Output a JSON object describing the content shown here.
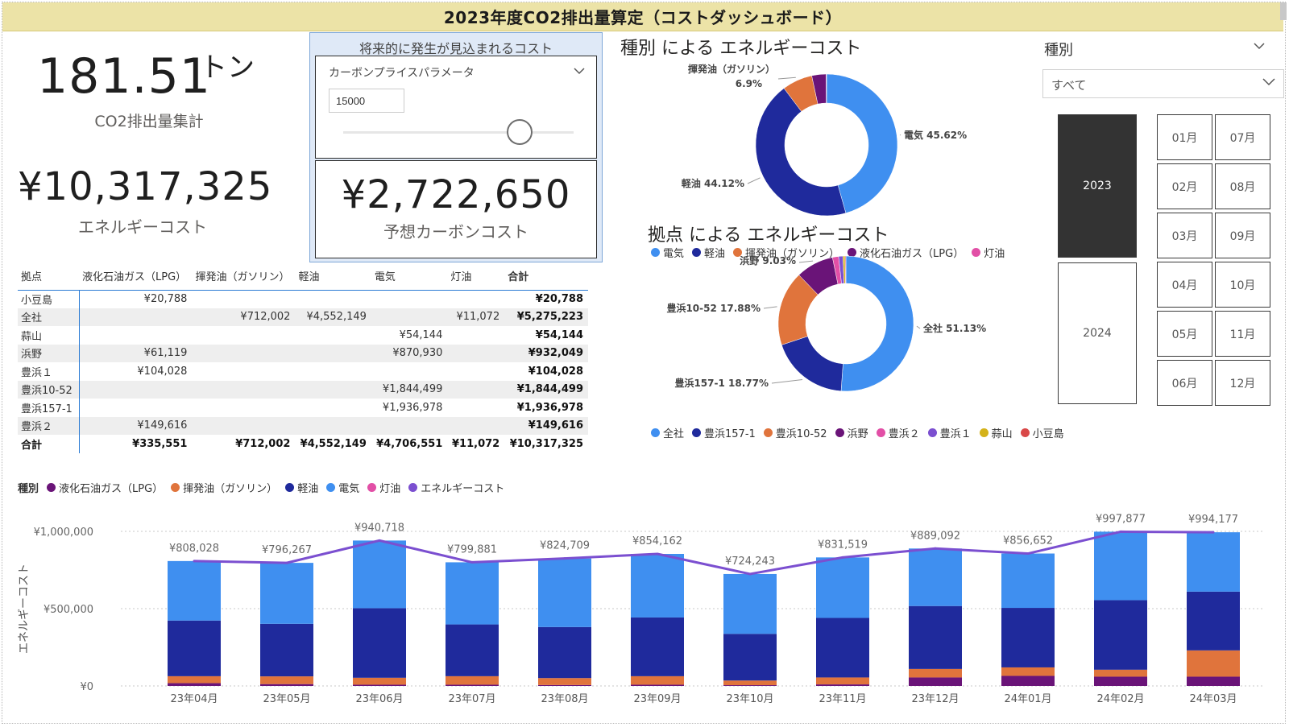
{
  "header": {
    "title": "2023年度CO2排出量算定（コストダッシュボード）"
  },
  "kpi": {
    "co2_value": "181.51",
    "co2_unit": "トン",
    "co2_label": "CO2排出量集計",
    "energy_value": "¥10,317,325",
    "energy_label": "エネルギーコスト",
    "carbon_value": "¥2,722,650",
    "carbon_label": "予想カーボンコスト"
  },
  "carbon_box": {
    "heading": "将来的に発生が見込まれるコスト",
    "param_title": "カーボンプライスパラメータ",
    "param_value": "15000",
    "slider_fraction": 0.75
  },
  "matrix": {
    "headers": [
      "拠点",
      "液化石油ガス（LPG）",
      "揮発油（ガソリン）",
      "軽油",
      "電気",
      "灯油",
      "合計"
    ],
    "rows": [
      [
        "小豆島",
        "¥20,788",
        "",
        "",
        "",
        "",
        "¥20,788"
      ],
      [
        "全社",
        "",
        "¥712,002",
        "¥4,552,149",
        "",
        "¥11,072",
        "¥5,275,223"
      ],
      [
        "蒜山",
        "",
        "",
        "",
        "¥54,144",
        "",
        "¥54,144"
      ],
      [
        "浜野",
        "¥61,119",
        "",
        "",
        "¥870,930",
        "",
        "¥932,049"
      ],
      [
        "豊浜１",
        "¥104,028",
        "",
        "",
        "",
        "",
        "¥104,028"
      ],
      [
        "豊浜10-52",
        "",
        "",
        "",
        "¥1,844,499",
        "",
        "¥1,844,499"
      ],
      [
        "豊浜157-1",
        "",
        "",
        "",
        "¥1,936,978",
        "",
        "¥1,936,978"
      ],
      [
        "豊浜２",
        "¥149,616",
        "",
        "",
        "",
        "",
        "¥149,616"
      ]
    ],
    "total": [
      "合計",
      "¥335,551",
      "¥712,002",
      "¥4,552,149",
      "¥4,706,551",
      "¥11,072",
      "¥10,317,325"
    ]
  },
  "donut_type": {
    "title": "種別 による エネルギーコスト",
    "slices": [
      {
        "label": "電気 45.62%",
        "value": 45.62,
        "color": "#3f8ff0"
      },
      {
        "label": "軽油 44.12%",
        "value": 44.12,
        "color": "#1f2a9c"
      },
      {
        "label": "揮発油（ガソリン）",
        "label2": "6.9%",
        "value": 6.9,
        "color": "#e0743c"
      },
      {
        "label": "",
        "value": 3.25,
        "color": "#6a1478"
      },
      {
        "label": "",
        "value": 0.11,
        "color": "#e24fa6"
      }
    ]
  },
  "donut_site": {
    "title": "拠点 による エネルギーコスト",
    "slices": [
      {
        "label": "全社 51.13%",
        "value": 51.13,
        "color": "#3f8ff0"
      },
      {
        "label": "豊浜157-1 18.77%",
        "value": 18.77,
        "color": "#1f2a9c"
      },
      {
        "label": "豊浜10-52 17.88%",
        "value": 17.88,
        "color": "#e0743c"
      },
      {
        "label": "浜野 9.03%",
        "value": 9.03,
        "color": "#6a1478"
      },
      {
        "label": "",
        "value": 1.45,
        "color": "#e24fa6"
      },
      {
        "label": "",
        "value": 1.01,
        "color": "#7b4fd0"
      },
      {
        "label": "",
        "value": 0.52,
        "color": "#d4b21a"
      },
      {
        "label": "",
        "value": 0.2,
        "color": "#d94848"
      }
    ]
  },
  "legend_type": [
    {
      "label": "電気",
      "color": "#3f8ff0"
    },
    {
      "label": "軽油",
      "color": "#1f2a9c"
    },
    {
      "label": "揮発油（ガソリン）",
      "color": "#e0743c"
    },
    {
      "label": "液化石油ガス（LPG）",
      "color": "#6a1478"
    },
    {
      "label": "灯油",
      "color": "#e24fa6"
    }
  ],
  "legend_site": [
    {
      "label": "全社",
      "color": "#3f8ff0"
    },
    {
      "label": "豊浜157-1",
      "color": "#1f2a9c"
    },
    {
      "label": "豊浜10-52",
      "color": "#e0743c"
    },
    {
      "label": "浜野",
      "color": "#6a1478"
    },
    {
      "label": "豊浜２",
      "color": "#e24fa6"
    },
    {
      "label": "豊浜１",
      "color": "#7b4fd0"
    },
    {
      "label": "蒜山",
      "color": "#d4b21a"
    },
    {
      "label": "小豆島",
      "color": "#d94848"
    }
  ],
  "slicer": {
    "title": "種別",
    "dropdown_value": "すべて",
    "years": [
      {
        "label": "2023",
        "selected": true
      },
      {
        "label": "2024",
        "selected": false
      }
    ],
    "months_left": [
      "01月",
      "02月",
      "03月",
      "04月",
      "05月",
      "06月"
    ],
    "months_right": [
      "07月",
      "08月",
      "09月",
      "10月",
      "11月",
      "12月"
    ]
  },
  "chart_data": {
    "type": "bar",
    "stacked": true,
    "legend_title": "種別",
    "ylabel": "エネルギーコスト",
    "ylim": [
      0,
      1000000
    ],
    "yticks": [
      "¥0",
      "¥500,000",
      "¥1,000,000"
    ],
    "categories": [
      "23年04月",
      "23年05月",
      "23年06月",
      "23年07月",
      "23年08月",
      "23年09月",
      "23年10月",
      "23年11月",
      "23年12月",
      "24年01月",
      "24年02月",
      "24年03月"
    ],
    "series": [
      {
        "name": "液化石油ガス（LPG）",
        "color": "#6a1478",
        "values": [
          18000,
          12000,
          8000,
          8000,
          6000,
          8000,
          5000,
          10000,
          55000,
          65000,
          60000,
          60000
        ]
      },
      {
        "name": "揮発油（ガソリン）",
        "color": "#e0743c",
        "values": [
          45000,
          50000,
          45000,
          55000,
          45000,
          55000,
          30000,
          45000,
          55000,
          55000,
          45000,
          170000
        ]
      },
      {
        "name": "軽油",
        "color": "#1f2a9c",
        "values": [
          360000,
          340000,
          450000,
          335000,
          330000,
          380000,
          302000,
          385000,
          407000,
          385000,
          450000,
          380000
        ]
      },
      {
        "name": "電気",
        "color": "#3f8ff0",
        "values": [
          385028,
          394267,
          437718,
          401881,
          443709,
          411162,
          387243,
          391519,
          372092,
          351652,
          442877,
          384177
        ]
      },
      {
        "name": "灯油",
        "color": "#e24fa6",
        "values": [
          0,
          0,
          0,
          0,
          0,
          0,
          0,
          0,
          0,
          0,
          0,
          0
        ]
      }
    ],
    "line": {
      "name": "エネルギーコスト",
      "color": "#7b4fd0",
      "values": [
        808028,
        796267,
        940718,
        799881,
        824709,
        854162,
        724243,
        831519,
        889092,
        856652,
        997877,
        994177
      ]
    },
    "labels": [
      "¥808,028",
      "¥796,267",
      "¥940,718",
      "¥799,881",
      "¥824,709",
      "¥854,162",
      "¥724,243",
      "¥831,519",
      "¥889,092",
      "¥856,652",
      "¥997,877",
      "¥994,177"
    ]
  }
}
